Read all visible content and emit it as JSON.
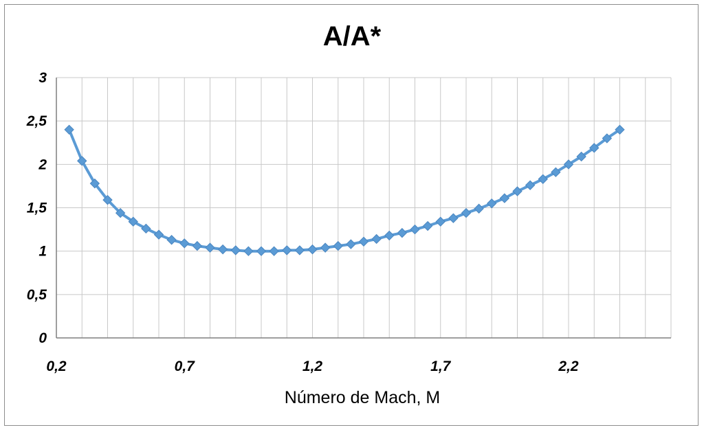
{
  "chart_data": {
    "type": "line",
    "title": "A/A*",
    "xlabel": "Número de Mach, M",
    "ylabel": "",
    "xlim": [
      0.2,
      2.6
    ],
    "ylim": [
      0,
      3
    ],
    "grid": true,
    "x_ticks": [
      0.2,
      0.7,
      1.2,
      1.7,
      2.2
    ],
    "x_tick_labels": [
      "0,2",
      "0,7",
      "1,2",
      "1,7",
      "2,2"
    ],
    "y_ticks": [
      0,
      0.5,
      1,
      1.5,
      2,
      2.5,
      3
    ],
    "y_tick_labels": [
      "0",
      "0,5",
      "1",
      "1,5",
      "2",
      "2,5",
      "3"
    ],
    "line_color": "#5b9bd5",
    "series": [
      {
        "x": [
          0.25,
          0.3,
          0.35,
          0.4,
          0.45,
          0.5,
          0.55,
          0.6,
          0.65,
          0.7,
          0.75,
          0.8,
          0.85,
          0.9,
          0.95,
          1.0,
          1.05,
          1.1,
          1.15,
          1.2,
          1.25,
          1.3,
          1.35,
          1.4,
          1.45,
          1.5,
          1.55,
          1.6,
          1.65,
          1.7,
          1.75,
          1.8,
          1.85,
          1.9,
          1.95,
          2.0,
          2.05,
          2.1,
          2.15,
          2.2,
          2.25,
          2.3,
          2.35,
          2.4
        ],
        "y": [
          2.4,
          2.04,
          1.78,
          1.59,
          1.44,
          1.34,
          1.26,
          1.19,
          1.13,
          1.09,
          1.06,
          1.04,
          1.02,
          1.01,
          1.0,
          1.0,
          1.0,
          1.01,
          1.01,
          1.02,
          1.04,
          1.06,
          1.08,
          1.11,
          1.14,
          1.18,
          1.21,
          1.25,
          1.29,
          1.34,
          1.38,
          1.44,
          1.49,
          1.55,
          1.61,
          1.69,
          1.76,
          1.83,
          1.91,
          2.0,
          2.09,
          2.19,
          2.3,
          2.4
        ]
      }
    ]
  }
}
